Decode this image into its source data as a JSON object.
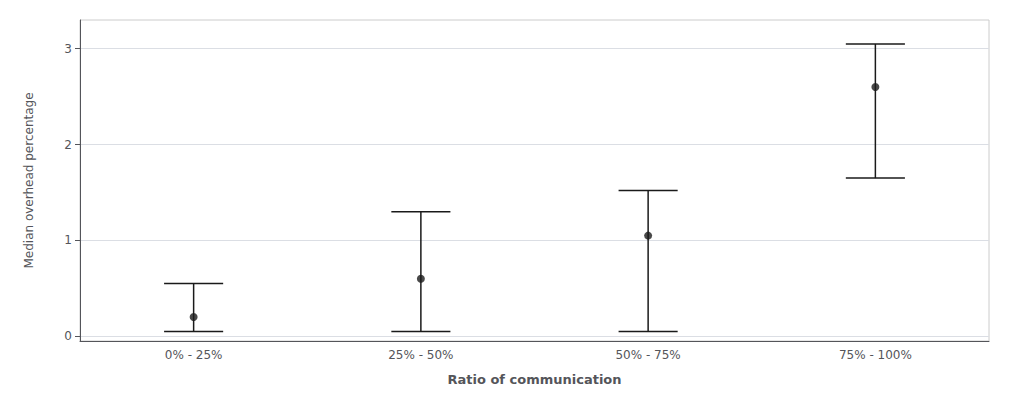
{
  "chart_data": {
    "type": "errorbar",
    "categories": [
      "0% - 25%",
      "25% - 50%",
      "50% - 75%",
      "75% - 100%"
    ],
    "values": [
      0.2,
      0.6,
      1.05,
      2.6
    ],
    "upper": [
      0.55,
      1.3,
      1.52,
      3.05
    ],
    "lower": [
      0.05,
      0.05,
      0.05,
      1.65
    ],
    "xlabel": "Ratio of communication",
    "ylabel": "Median overhead percentage",
    "ylim": [
      -0.05,
      3.3
    ],
    "yticks": [
      0,
      1,
      2,
      3
    ],
    "color": "#1a1a1a",
    "grid": true
  }
}
